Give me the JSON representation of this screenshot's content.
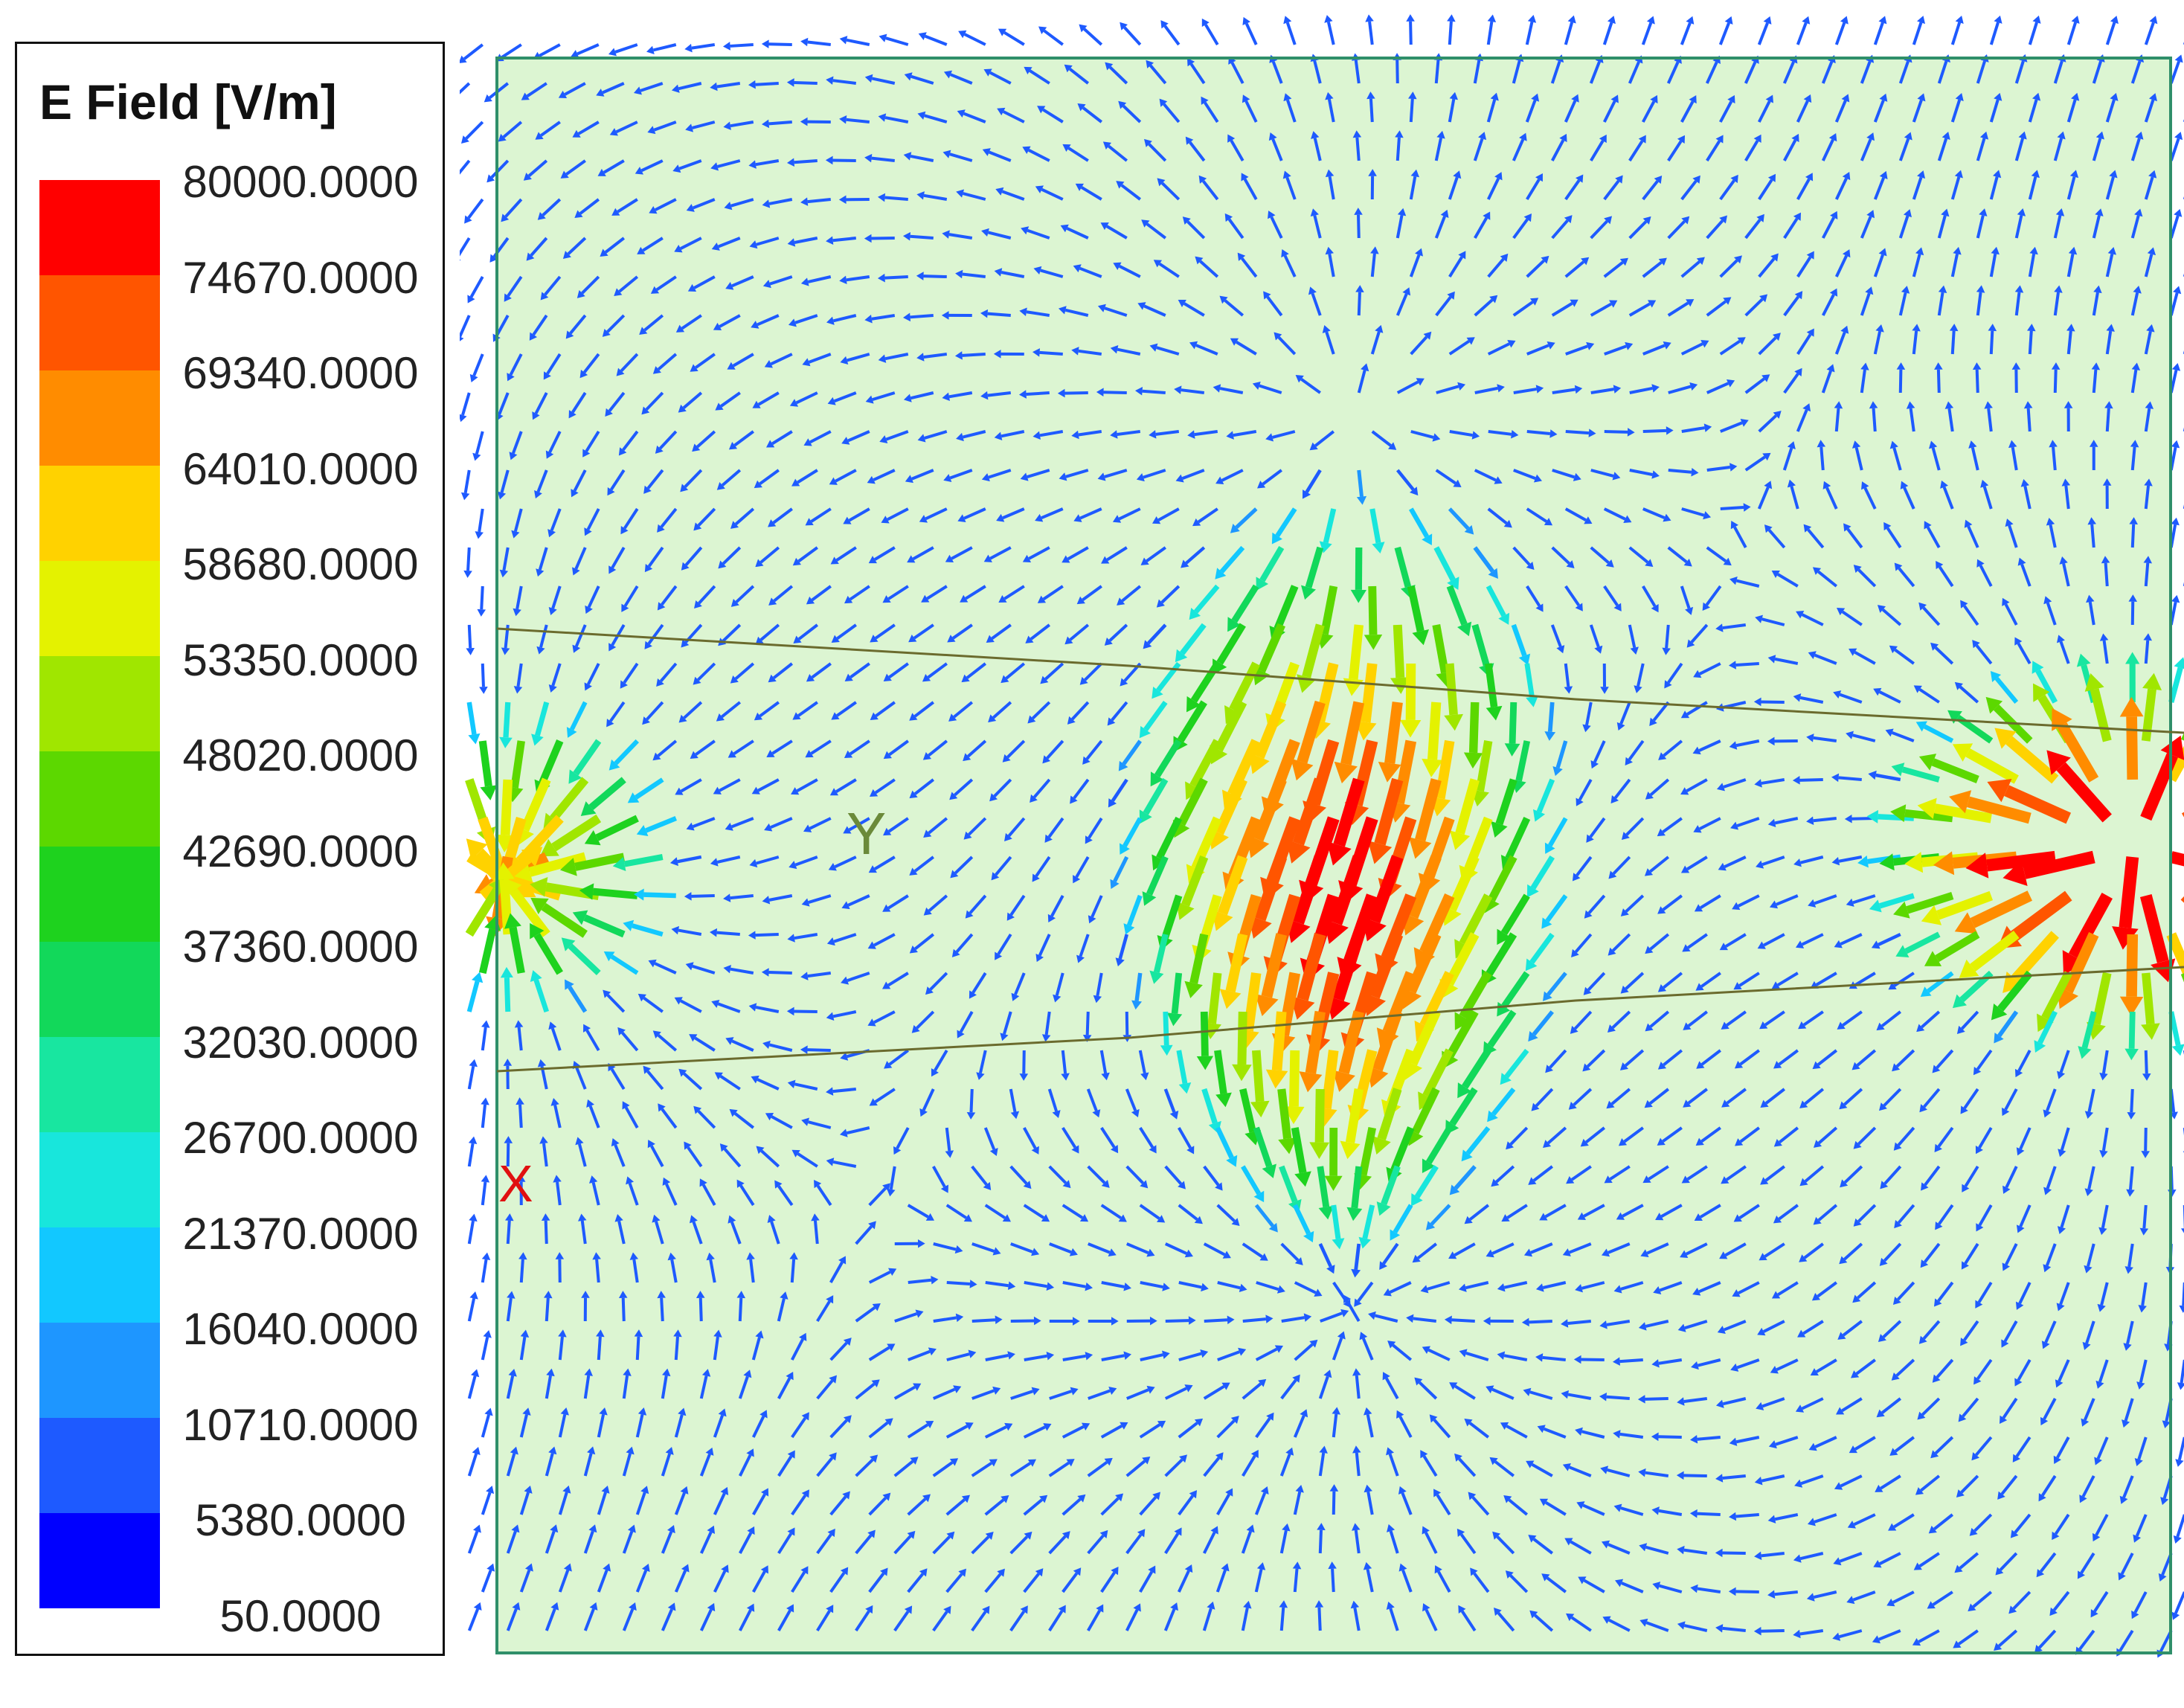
{
  "legend": {
    "title": "E Field [V/m]",
    "ticks": [
      "80000.0000",
      "74670.0000",
      "69340.0000",
      "64010.0000",
      "58680.0000",
      "53350.0000",
      "48020.0000",
      "42690.0000",
      "37360.0000",
      "32030.0000",
      "26700.0000",
      "21370.0000",
      "16040.0000",
      "10710.0000",
      "5380.0000",
      "50.0000"
    ],
    "colors": [
      "#ff0000",
      "#ff5500",
      "#ff8c00",
      "#ffd200",
      "#e4f200",
      "#a0e600",
      "#5cd800",
      "#1ed21e",
      "#12d85a",
      "#18e6a0",
      "#18e6dc",
      "#12c8ff",
      "#1e96ff",
      "#1e5aff",
      "#0000ff"
    ]
  },
  "plot": {
    "axis_labels": {
      "y": "Y",
      "x": "X"
    },
    "background": "#dcf5d2",
    "border_color": "#2f8f6a",
    "axis_line_color": "#6b6b2e",
    "field_model": "dipole-like E-field vectors, strongest near central ellipse and right-edge source",
    "value_range": [
      50,
      80000
    ]
  }
}
